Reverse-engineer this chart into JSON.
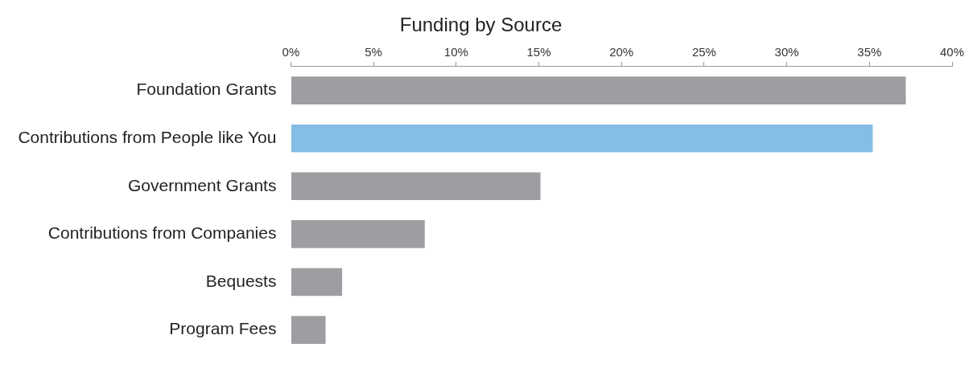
{
  "chart_data": {
    "type": "bar",
    "orientation": "horizontal",
    "title": "Funding by Source",
    "categories": [
      "Foundation Grants",
      "Contributions from People like You",
      "Government Grants",
      "Contributions from Companies",
      "Bequests",
      "Program Fees"
    ],
    "values": [
      37.2,
      35.2,
      15.1,
      8.1,
      3.1,
      2.1
    ],
    "colors": [
      "#9d9ea2",
      "#85bde6",
      "#9d9ea2",
      "#9d9ea2",
      "#9d9ea2",
      "#9d9ea2"
    ],
    "xlim": [
      0,
      40
    ],
    "xticks": [
      {
        "value": 0,
        "label": "0%"
      },
      {
        "value": 5,
        "label": "5%"
      },
      {
        "value": 10,
        "label": "10%"
      },
      {
        "value": 15,
        "label": "15%"
      },
      {
        "value": 20,
        "label": "20%"
      },
      {
        "value": 25,
        "label": "25%"
      },
      {
        "value": 30,
        "label": "30%"
      },
      {
        "value": 35,
        "label": "35%"
      },
      {
        "value": 40,
        "label": "40%"
      }
    ],
    "legend": false
  }
}
